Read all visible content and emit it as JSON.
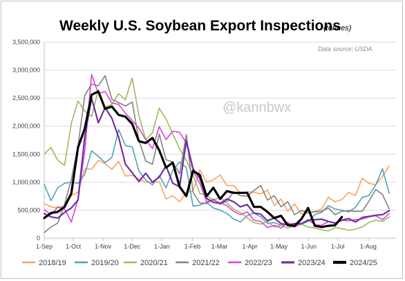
{
  "chart_data": {
    "type": "line",
    "title": "Weekly U.S. Soybean Export Inspections",
    "subtitle": "(tonnes)",
    "source_note": "Data source: USDA",
    "watermark": "@kannbwx",
    "xlabel": "",
    "ylabel": "",
    "ylim": [
      0,
      3500000
    ],
    "yticks": [
      0,
      500000,
      1000000,
      1500000,
      2000000,
      2500000,
      3000000,
      3500000
    ],
    "ytick_labels": [
      "0",
      "500,000",
      "1,000,000",
      "1,500,000",
      "2,000,000",
      "2,500,000",
      "3,000,000",
      "3,500,000"
    ],
    "xlim": [
      0,
      52
    ],
    "xticks": [
      0,
      4.3,
      8.7,
      13,
      17.4,
      21.9,
      25.9,
      30.4,
      34.7,
      39.1,
      43.4,
      47.9
    ],
    "xtick_labels": [
      "1-Sep",
      "1-Oct",
      "1-Nov",
      "1-Dec",
      "1-Jan",
      "1-Feb",
      "1-Mar",
      "1-Apr",
      "1-May",
      "1-Jun",
      "1-Jul",
      "1-Aug"
    ],
    "grid": true,
    "legend_position": "bottom",
    "series": [
      {
        "name": "2018/19",
        "color": "#f4a460",
        "width": 1.6,
        "values": [
          620000,
          560000,
          540000,
          580000,
          760000,
          820000,
          1240000,
          1230000,
          1390000,
          1330000,
          1230000,
          1370000,
          1110000,
          1120000,
          1060000,
          1000000,
          990000,
          1010000,
          700000,
          760000,
          650000,
          820000,
          840000,
          1220000,
          1000000,
          1040000,
          1130000,
          940000,
          940000,
          800000,
          830000,
          820000,
          790000,
          860000,
          580000,
          700000,
          480000,
          610000,
          430000,
          450000,
          480000,
          520000,
          730000,
          650000,
          690000,
          820000,
          760000,
          1070000,
          980000,
          950000,
          1100000,
          1290000
        ]
      },
      {
        "name": "2019/20",
        "color": "#4fa3b8",
        "width": 1.6,
        "values": [
          960000,
          670000,
          900000,
          980000,
          1000000,
          980000,
          1140000,
          1560000,
          1460000,
          1350000,
          1440000,
          1940000,
          1650000,
          1630000,
          1200000,
          1040000,
          950000,
          1120000,
          900000,
          1210000,
          1360000,
          1260000,
          570000,
          590000,
          640000,
          540000,
          500000,
          440000,
          340000,
          290000,
          400000,
          450000,
          380000,
          260000,
          280000,
          230000,
          280000,
          210000,
          250000,
          300000,
          420000,
          460000,
          580000,
          520000,
          500000,
          470000,
          550000,
          730000,
          760000,
          950000,
          1240000,
          800000
        ]
      },
      {
        "name": "2020/21",
        "color": "#9abb59",
        "width": 1.6,
        "values": [
          1500000,
          1620000,
          1390000,
          1300000,
          2050000,
          2450000,
          2270000,
          2170000,
          2650000,
          2340000,
          2390000,
          2580000,
          2470000,
          2860000,
          2190000,
          1760000,
          1880000,
          2320000,
          2130000,
          1860000,
          1600000,
          1390000,
          1120000,
          800000,
          760000,
          680000,
          730000,
          630000,
          520000,
          460000,
          360000,
          280000,
          250000,
          300000,
          200000,
          230000,
          180000,
          220000,
          250000,
          200000,
          180000,
          150000,
          130000,
          190000,
          170000,
          140000,
          160000,
          200000,
          280000,
          320000,
          300000,
          380000
        ]
      },
      {
        "name": "2021/22",
        "color": "#808080",
        "width": 1.6,
        "values": [
          100000,
          200000,
          270000,
          600000,
          1050000,
          1650000,
          2550000,
          2750000,
          2720000,
          2900000,
          2480000,
          2420000,
          2360000,
          2430000,
          1750000,
          1380000,
          1320000,
          1860000,
          1400000,
          1360000,
          1150000,
          1850000,
          820000,
          630000,
          620000,
          700000,
          610000,
          660000,
          830000,
          760000,
          750000,
          850000,
          940000,
          680000,
          760000,
          560000,
          650000,
          420000,
          490000,
          460000,
          470000,
          480000,
          540000,
          420000,
          480000,
          490000,
          480000,
          480000,
          660000,
          870000,
          780000,
          520000
        ]
      },
      {
        "name": "2022/23",
        "color": "#e040d0",
        "width": 1.6,
        "values": [
          510000,
          420000,
          560000,
          520000,
          290000,
          700000,
          1560000,
          2920000,
          2580000,
          2620000,
          2410000,
          2390000,
          2230000,
          2100000,
          1960000,
          1760000,
          1600000,
          1990000,
          1760000,
          1910000,
          1890000,
          1700000,
          1200000,
          980000,
          650000,
          680000,
          630000,
          580000,
          480000,
          420000,
          470000,
          320000,
          300000,
          190000,
          230000,
          180000,
          280000,
          200000,
          260000,
          330000,
          240000,
          230000,
          300000,
          260000,
          320000,
          310000,
          330000,
          340000,
          380000,
          400000,
          330000,
          440000
        ]
      },
      {
        "name": "2023/24",
        "color": "#7030a0",
        "width": 2.2,
        "values": [
          440000,
          380000,
          360000,
          460000,
          540000,
          680000,
          1820000,
          2500000,
          2060000,
          2330000,
          2140000,
          1800000,
          1320000,
          1170000,
          1010000,
          1160000,
          1000000,
          1090000,
          1290000,
          980000,
          920000,
          1740000,
          1240000,
          1070000,
          710000,
          640000,
          620000,
          700000,
          650000,
          560000,
          600000,
          450000,
          430000,
          310000,
          360000,
          260000,
          240000,
          260000,
          260000,
          320000,
          330000,
          340000,
          300000,
          270000,
          320000,
          350000,
          290000,
          370000,
          390000,
          410000,
          420000,
          490000
        ]
      },
      {
        "name": "2024/25",
        "color": "#000000",
        "width": 3.2,
        "values": [
          360000,
          450000,
          470000,
          560000,
          800000,
          1620000,
          1960000,
          2560000,
          2620000,
          2310000,
          2350000,
          2200000,
          2170000,
          2040000,
          1730000,
          1700000,
          1790000,
          1570000,
          1260000,
          1350000,
          920000,
          750000,
          1200000,
          1130000,
          750000,
          900000,
          700000,
          840000,
          810000,
          810000,
          810000,
          560000,
          560000,
          470000,
          360000,
          400000,
          230000,
          220000,
          340000,
          540000,
          220000,
          200000,
          220000,
          230000,
          380000
        ]
      }
    ]
  }
}
